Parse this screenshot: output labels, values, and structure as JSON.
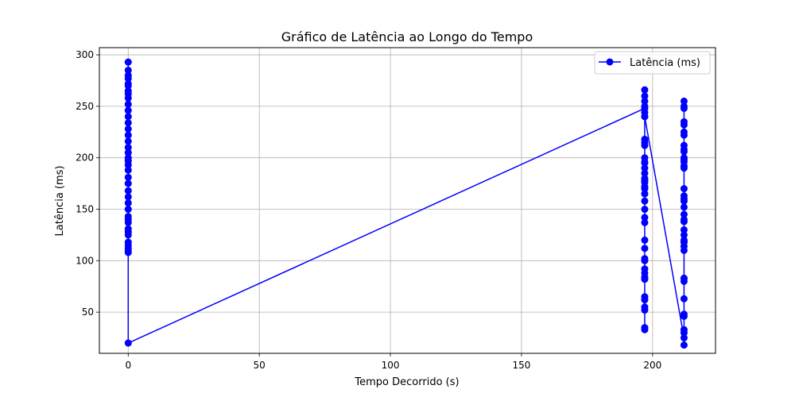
{
  "chart_data": {
    "type": "line",
    "title": "Gráfico de Latência ao Longo do Tempo",
    "xlabel": "Tempo Decorrido (s)",
    "ylabel": "Latência (ms)",
    "xlim": [
      -11,
      224
    ],
    "ylim": [
      10,
      307
    ],
    "xticks": [
      0,
      50,
      100,
      150,
      200
    ],
    "yticks": [
      50,
      100,
      150,
      200,
      250,
      300
    ],
    "grid": true,
    "legend_position": "top-right",
    "colors": {
      "series": "#0000ff"
    },
    "series": [
      {
        "name": "Latência (ms)",
        "x": [
          0,
          0,
          0,
          0,
          0,
          0,
          0,
          0,
          0,
          0,
          0,
          0,
          0,
          0,
          0,
          0,
          0,
          0,
          0,
          0,
          0,
          0,
          0,
          0,
          0,
          0,
          0,
          0,
          0,
          0,
          0,
          0,
          0,
          0,
          0,
          0,
          0,
          0,
          0,
          0,
          197,
          197,
          197,
          197,
          197,
          197,
          197,
          197,
          197,
          197,
          197,
          197,
          197,
          197,
          197,
          197,
          197,
          197,
          197,
          197,
          197,
          197,
          197,
          197,
          197,
          197,
          197,
          197,
          197,
          197,
          197,
          197,
          197,
          197,
          197,
          197,
          197,
          197,
          197,
          197,
          212,
          212,
          212,
          212,
          212,
          212,
          212,
          212,
          212,
          212,
          212,
          212,
          212,
          212,
          212,
          212,
          212,
          212,
          212,
          212,
          212,
          212,
          212,
          212,
          212,
          212,
          212,
          212,
          212,
          212,
          212,
          212,
          212,
          212,
          212,
          212,
          212,
          212,
          212,
          212
        ],
        "y": [
          293,
          108,
          285,
          112,
          277,
          118,
          270,
          125,
          265,
          131,
          258,
          137,
          252,
          143,
          246,
          150,
          240,
          156,
          234,
          162,
          228,
          168,
          222,
          175,
          216,
          181,
          210,
          188,
          205,
          193,
          200,
          197,
          110,
          280,
          115,
          272,
          128,
          262,
          140,
          20,
          248,
          35,
          266,
          52,
          255,
          65,
          240,
          84,
          218,
          92,
          212,
          100,
          200,
          112,
          195,
          120,
          190,
          137,
          180,
          142,
          176,
          150,
          170,
          158,
          165,
          178,
          185,
          196,
          215,
          244,
          250,
          88,
          102,
          62,
          55,
          33,
          260,
          82,
          172,
          240,
          25,
          255,
          33,
          235,
          48,
          222,
          63,
          212,
          80,
          206,
          83,
          198,
          110,
          192,
          118,
          170,
          120,
          160,
          125,
          152,
          130,
          145,
          140,
          138,
          158,
          163,
          190,
          200,
          208,
          225,
          232,
          250,
          46,
          118,
          83,
          30,
          248,
          196,
          114,
          18
        ]
      }
    ]
  }
}
